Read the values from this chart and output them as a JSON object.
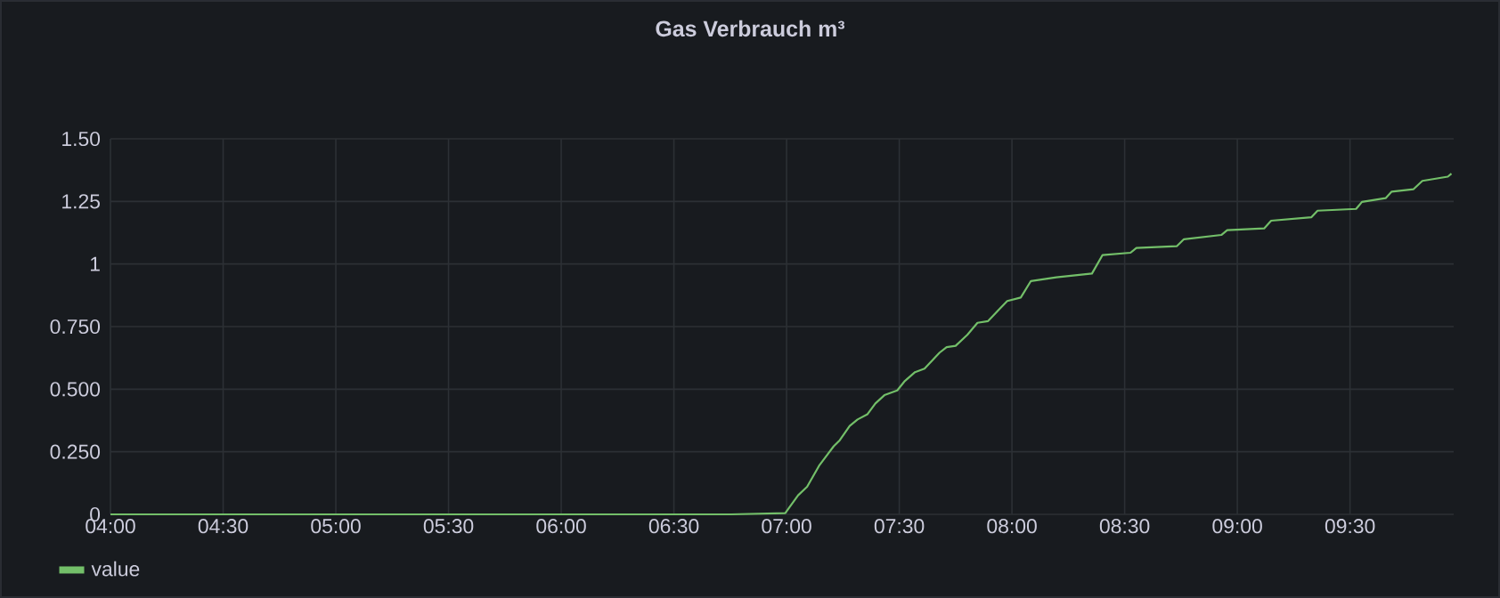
{
  "chart_data": {
    "type": "line",
    "title": "Gas Verbrauch m³",
    "x": [
      4.0,
      6.754,
      6.994,
      7.051,
      7.091,
      7.144,
      7.209,
      7.236,
      7.28,
      7.315,
      7.359,
      7.394,
      7.434,
      7.491,
      7.525,
      7.57,
      7.612,
      7.679,
      7.71,
      7.75,
      7.802,
      7.847,
      7.894,
      7.939,
      7.979,
      8.039,
      8.084,
      8.197,
      8.355,
      8.402,
      8.526,
      8.552,
      8.731,
      8.763,
      8.929,
      8.955,
      9.119,
      9.15,
      9.329,
      9.356,
      9.527,
      9.553,
      9.658,
      9.685,
      9.782,
      9.821,
      9.934,
      9.95
    ],
    "series": [
      {
        "name": "value",
        "color": "#73bf69",
        "values": [
          0,
          0,
          0.005,
          0.076,
          0.11,
          0.194,
          0.272,
          0.296,
          0.353,
          0.379,
          0.4,
          0.443,
          0.476,
          0.495,
          0.533,
          0.568,
          0.582,
          0.646,
          0.668,
          0.673,
          0.717,
          0.765,
          0.772,
          0.815,
          0.852,
          0.866,
          0.932,
          0.947,
          0.962,
          1.036,
          1.045,
          1.064,
          1.071,
          1.099,
          1.116,
          1.135,
          1.142,
          1.173,
          1.187,
          1.213,
          1.22,
          1.248,
          1.263,
          1.289,
          1.299,
          1.332,
          1.349,
          1.361
        ]
      }
    ],
    "xlim": [
      4,
      9.96
    ],
    "xticks": [
      {
        "value": 4,
        "label": "04:00"
      },
      {
        "value": 4.5,
        "label": "04:30"
      },
      {
        "value": 5,
        "label": "05:00"
      },
      {
        "value": 5.5,
        "label": "05:30"
      },
      {
        "value": 6,
        "label": "06:00"
      },
      {
        "value": 6.5,
        "label": "06:30"
      },
      {
        "value": 7,
        "label": "07:00"
      },
      {
        "value": 7.5,
        "label": "07:30"
      },
      {
        "value": 8,
        "label": "08:00"
      },
      {
        "value": 8.5,
        "label": "08:30"
      },
      {
        "value": 9,
        "label": "09:00"
      },
      {
        "value": 9.5,
        "label": "09:30"
      }
    ],
    "ylim": [
      0,
      1.5
    ],
    "yticks": [
      0,
      {
        "value": 0.25,
        "label": "0.250"
      },
      {
        "value": 0.5,
        "label": "0.500"
      },
      {
        "value": 0.75,
        "label": "0.750"
      },
      1,
      1.25,
      {
        "value": 1.5,
        "label": "1.50"
      }
    ],
    "grid": true,
    "legend": "bottom left",
    "marker": "none",
    "line_style": "solid"
  }
}
